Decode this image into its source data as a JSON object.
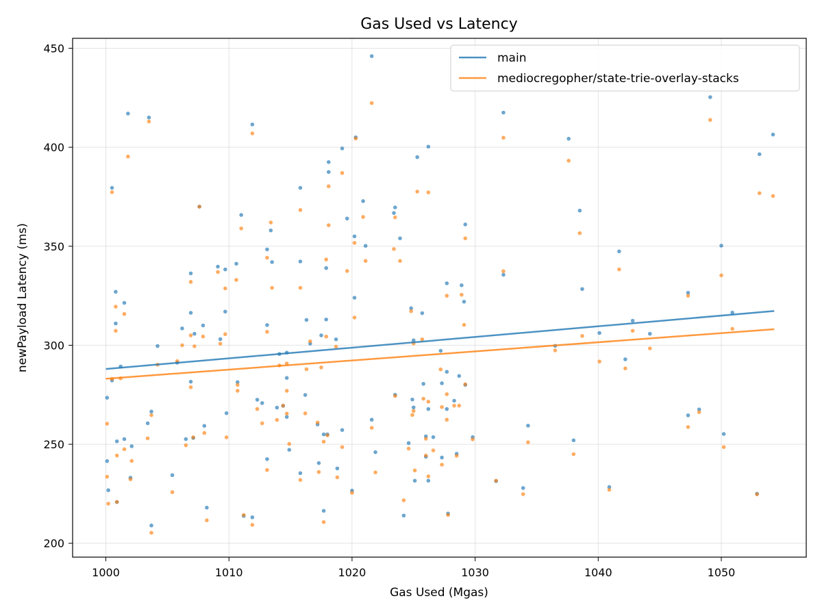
{
  "chart_data": {
    "type": "scatter",
    "title": "Gas Used vs Latency",
    "xlabel": "Gas Used (Mgas)",
    "ylabel": "newPayload Latency (ms)",
    "xlim": [
      997.3,
      1056.9
    ],
    "ylim": [
      193,
      455
    ],
    "xticks": [
      1000,
      1010,
      1020,
      1030,
      1040,
      1050
    ],
    "yticks": [
      200,
      250,
      300,
      350,
      400,
      450
    ],
    "grid": true,
    "legend_position": "top-right",
    "series": [
      {
        "name": "main",
        "color": "#1f77b4",
        "trend": [
          [
            1000,
            288
          ],
          [
            1054.3,
            317.3
          ]
        ],
        "points": [
          [
            1000.1,
            273.5
          ],
          [
            1000.1,
            241.5
          ],
          [
            1000.2,
            226.8
          ],
          [
            1000.5,
            379.5
          ],
          [
            1000.5,
            282.2
          ],
          [
            1000.8,
            327
          ],
          [
            1000.8,
            311
          ],
          [
            1000.9,
            251.5
          ],
          [
            1000.9,
            220.8
          ],
          [
            1001.2,
            289.3
          ],
          [
            1001.5,
            321.4
          ],
          [
            1001.5,
            252.6
          ],
          [
            1001.8,
            417
          ],
          [
            1002,
            233.1
          ],
          [
            1002.1,
            249
          ],
          [
            1003.4,
            260.6
          ],
          [
            1003.5,
            415
          ],
          [
            1003.7,
            266.5
          ],
          [
            1003.7,
            209
          ],
          [
            1004.2,
            299.6
          ],
          [
            1005.4,
            234.4
          ],
          [
            1005.8,
            291.2
          ],
          [
            1006.2,
            308.5
          ],
          [
            1006.5,
            252.6
          ],
          [
            1006.9,
            336.3
          ],
          [
            1006.9,
            316.4
          ],
          [
            1006.9,
            281.6
          ],
          [
            1007.1,
            253.2
          ],
          [
            1007.2,
            305.8
          ],
          [
            1007.6,
            370
          ],
          [
            1007.9,
            310
          ],
          [
            1008,
            259.3
          ],
          [
            1008.2,
            218
          ],
          [
            1009.1,
            339.7
          ],
          [
            1009.3,
            303.1
          ],
          [
            1009.7,
            338.3
          ],
          [
            1009.7,
            317
          ],
          [
            1009.8,
            265.7
          ],
          [
            1010.6,
            341.2
          ],
          [
            1010.7,
            281.4
          ],
          [
            1011,
            365.8
          ],
          [
            1011.2,
            213.8
          ],
          [
            1011.9,
            411.5
          ],
          [
            1011.9,
            213.1
          ],
          [
            1012.3,
            272.5
          ],
          [
            1012.7,
            270.8
          ],
          [
            1013.1,
            348.4
          ],
          [
            1013.1,
            310.2
          ],
          [
            1013.1,
            242.5
          ],
          [
            1013.4,
            358
          ],
          [
            1013.5,
            342
          ],
          [
            1013.9,
            268.5
          ],
          [
            1014.1,
            295.6
          ],
          [
            1014.4,
            269.4
          ],
          [
            1014.7,
            296.3
          ],
          [
            1014.7,
            283.5
          ],
          [
            1014.7,
            263.8
          ],
          [
            1014.9,
            247.2
          ],
          [
            1015.8,
            379.5
          ],
          [
            1015.8,
            342.3
          ],
          [
            1015.8,
            235.4
          ],
          [
            1016.2,
            274.9
          ],
          [
            1016.3,
            312.8
          ],
          [
            1016.6,
            300.8
          ],
          [
            1017.2,
            260
          ],
          [
            1017.3,
            240.5
          ],
          [
            1017.5,
            305
          ],
          [
            1017.7,
            255
          ],
          [
            1017.7,
            216.4
          ],
          [
            1017.9,
            339
          ],
          [
            1017.9,
            313
          ],
          [
            1018,
            255
          ],
          [
            1018.1,
            392.5
          ],
          [
            1018.1,
            387.5
          ],
          [
            1018.7,
            303
          ],
          [
            1018.8,
            237.8
          ],
          [
            1019.2,
            399.4
          ],
          [
            1019.2,
            257.2
          ],
          [
            1019.6,
            364
          ],
          [
            1020,
            226.6
          ],
          [
            1020.2,
            355
          ],
          [
            1020.2,
            324
          ],
          [
            1020.3,
            405
          ],
          [
            1020.9,
            372.8
          ],
          [
            1021.1,
            350.2
          ],
          [
            1021.6,
            262.4
          ],
          [
            1021.6,
            446
          ],
          [
            1021.9,
            246
          ],
          [
            1023.4,
            366.8
          ],
          [
            1023.5,
            369.6
          ],
          [
            1023.5,
            275
          ],
          [
            1023.9,
            354
          ],
          [
            1024.2,
            214
          ],
          [
            1024.6,
            250.6
          ],
          [
            1024.8,
            318.7
          ],
          [
            1024.9,
            272.6
          ],
          [
            1025,
            302.5
          ],
          [
            1025,
            268.6
          ],
          [
            1025.1,
            231.6
          ],
          [
            1025.3,
            395
          ],
          [
            1025.7,
            316.2
          ],
          [
            1025.8,
            280.5
          ],
          [
            1026,
            254
          ],
          [
            1026,
            243.7
          ],
          [
            1026.2,
            400.3
          ],
          [
            1026.2,
            267.8
          ],
          [
            1026.2,
            231.6
          ],
          [
            1026.6,
            253.6
          ],
          [
            1027.2,
            297.2
          ],
          [
            1027.3,
            280.8
          ],
          [
            1027.3,
            243.3
          ],
          [
            1027.7,
            331.3
          ],
          [
            1027.7,
            286.6
          ],
          [
            1027.7,
            267.8
          ],
          [
            1027.8,
            215
          ],
          [
            1028.3,
            272
          ],
          [
            1028.5,
            245.2
          ],
          [
            1028.7,
            284.5
          ],
          [
            1028.9,
            330.3
          ],
          [
            1029.1,
            322
          ],
          [
            1029.2,
            361
          ],
          [
            1029.2,
            280
          ],
          [
            1029.8,
            253.6
          ],
          [
            1031.7,
            231.4
          ],
          [
            1032.3,
            417.5
          ],
          [
            1032.3,
            335.6
          ],
          [
            1033.9,
            227.9
          ],
          [
            1034.3,
            259.4
          ],
          [
            1036.5,
            299.7
          ],
          [
            1037.6,
            404.3
          ],
          [
            1038,
            252
          ],
          [
            1038.5,
            368
          ],
          [
            1038.7,
            328.4
          ],
          [
            1040.1,
            306.2
          ],
          [
            1040.9,
            228.4
          ],
          [
            1041.7,
            347.4
          ],
          [
            1042.2,
            292.9
          ],
          [
            1042.8,
            312.4
          ],
          [
            1044.2,
            305.8
          ],
          [
            1047.3,
            326.5
          ],
          [
            1047.3,
            264.6
          ],
          [
            1048.2,
            267.6
          ],
          [
            1049.1,
            425.3
          ],
          [
            1050,
            350.3
          ],
          [
            1050.2,
            255.2
          ],
          [
            1050.9,
            316.5
          ],
          [
            1052.9,
            225
          ],
          [
            1053.1,
            396.5
          ],
          [
            1054.2,
            406.4
          ]
        ]
      },
      {
        "name": "mediocregopher/state-trie-overlay-stacks",
        "color": "#ff7f0e",
        "trend": [
          [
            1000,
            283.1
          ],
          [
            1054.3,
            308.1
          ]
        ],
        "points": [
          [
            1000.1,
            260.4
          ],
          [
            1000.1,
            233.6
          ],
          [
            1000.2,
            220
          ],
          [
            1000.5,
            377.3
          ],
          [
            1000.5,
            283
          ],
          [
            1000.8,
            319.5
          ],
          [
            1000.8,
            307.3
          ],
          [
            1000.9,
            244.3
          ],
          [
            1000.9,
            220.9
          ],
          [
            1001.2,
            283.3
          ],
          [
            1001.5,
            315.8
          ],
          [
            1001.5,
            247.5
          ],
          [
            1001.8,
            395.3
          ],
          [
            1002,
            232.3
          ],
          [
            1002.1,
            241.6
          ],
          [
            1003.4,
            253
          ],
          [
            1003.5,
            413
          ],
          [
            1003.7,
            264.7
          ],
          [
            1003.7,
            205.3
          ],
          [
            1004.2,
            290.2
          ],
          [
            1005.4,
            225.8
          ],
          [
            1005.8,
            292
          ],
          [
            1006.2,
            300
          ],
          [
            1006.5,
            249.5
          ],
          [
            1006.9,
            332
          ],
          [
            1006.9,
            305
          ],
          [
            1006.9,
            278.8
          ],
          [
            1007.1,
            253.5
          ],
          [
            1007.2,
            299.5
          ],
          [
            1007.6,
            370
          ],
          [
            1007.9,
            304.4
          ],
          [
            1008,
            255.7
          ],
          [
            1008.2,
            211.6
          ],
          [
            1009.1,
            337
          ],
          [
            1009.3,
            300.8
          ],
          [
            1009.7,
            328.7
          ],
          [
            1009.7,
            305.6
          ],
          [
            1009.8,
            253.5
          ],
          [
            1010.6,
            333
          ],
          [
            1010.7,
            277
          ],
          [
            1010.7,
            280
          ],
          [
            1011,
            359
          ],
          [
            1011.2,
            214.3
          ],
          [
            1011.9,
            407
          ],
          [
            1011.9,
            209.3
          ],
          [
            1012.3,
            267.8
          ],
          [
            1012.7,
            260.6
          ],
          [
            1013.1,
            344.2
          ],
          [
            1013.1,
            306.8
          ],
          [
            1013.1,
            237
          ],
          [
            1013.4,
            362
          ],
          [
            1013.5,
            329
          ],
          [
            1013.9,
            262.3
          ],
          [
            1014.1,
            289.8
          ],
          [
            1014.4,
            269.5
          ],
          [
            1014.7,
            290.8
          ],
          [
            1014.7,
            277
          ],
          [
            1014.7,
            265.5
          ],
          [
            1014.9,
            250.2
          ],
          [
            1015.8,
            368.3
          ],
          [
            1015.8,
            329
          ],
          [
            1015.8,
            232
          ],
          [
            1016.2,
            265.6
          ],
          [
            1016.3,
            287.9
          ],
          [
            1016.6,
            302
          ],
          [
            1017.2,
            261
          ],
          [
            1017.3,
            236
          ],
          [
            1017.5,
            288.8
          ],
          [
            1017.7,
            251.3
          ],
          [
            1017.7,
            210.7
          ],
          [
            1017.9,
            343.3
          ],
          [
            1017.9,
            304.4
          ],
          [
            1018,
            254.5
          ],
          [
            1018.1,
            380.3
          ],
          [
            1018.1,
            360.6
          ],
          [
            1018.7,
            299.3
          ],
          [
            1018.8,
            233.3
          ],
          [
            1019.2,
            387
          ],
          [
            1019.2,
            248.6
          ],
          [
            1019.6,
            337.5
          ],
          [
            1020,
            225.5
          ],
          [
            1020.2,
            351.7
          ],
          [
            1020.2,
            314
          ],
          [
            1020.3,
            404.4
          ],
          [
            1020.9,
            364.8
          ],
          [
            1021.1,
            342.6
          ],
          [
            1021.6,
            258.3
          ],
          [
            1021.6,
            422.3
          ],
          [
            1021.9,
            235.8
          ],
          [
            1023.4,
            348.6
          ],
          [
            1023.5,
            364.6
          ],
          [
            1023.5,
            274.4
          ],
          [
            1023.9,
            342.6
          ],
          [
            1024.2,
            221.7
          ],
          [
            1024.6,
            247.8
          ],
          [
            1024.8,
            317.2
          ],
          [
            1024.9,
            264.8
          ],
          [
            1025,
            300.9
          ],
          [
            1025,
            266.8
          ],
          [
            1025.1,
            236.8
          ],
          [
            1025.3,
            377.6
          ],
          [
            1025.7,
            303
          ],
          [
            1025.8,
            273
          ],
          [
            1026,
            252.8
          ],
          [
            1026,
            244.3
          ],
          [
            1026.2,
            377.2
          ],
          [
            1026.2,
            271.5
          ],
          [
            1026.2,
            233.8
          ],
          [
            1026.6,
            246.9
          ],
          [
            1027.2,
            287.8
          ],
          [
            1027.3,
            268.8
          ],
          [
            1027.3,
            239.7
          ],
          [
            1027.7,
            325
          ],
          [
            1027.7,
            275.3
          ],
          [
            1027.7,
            262.4
          ],
          [
            1027.8,
            214.3
          ],
          [
            1028.3,
            269.5
          ],
          [
            1028.5,
            244.2
          ],
          [
            1028.7,
            269.5
          ],
          [
            1028.9,
            325.5
          ],
          [
            1029.1,
            310.3
          ],
          [
            1029.2,
            354
          ],
          [
            1029.2,
            280.3
          ],
          [
            1029.8,
            252.5
          ],
          [
            1031.7,
            231.6
          ],
          [
            1032.3,
            404.8
          ],
          [
            1032.3,
            337.4
          ],
          [
            1033.9,
            224.8
          ],
          [
            1034.3,
            251
          ],
          [
            1036.5,
            297.4
          ],
          [
            1037.6,
            393.2
          ],
          [
            1038,
            245
          ],
          [
            1038.5,
            356.6
          ],
          [
            1038.7,
            304.7
          ],
          [
            1040.1,
            291.8
          ],
          [
            1040.9,
            227
          ],
          [
            1041.7,
            338.3
          ],
          [
            1042.2,
            288.3
          ],
          [
            1042.8,
            307.3
          ],
          [
            1044.2,
            298.4
          ],
          [
            1047.3,
            325
          ],
          [
            1047.3,
            258.7
          ],
          [
            1048.2,
            266.2
          ],
          [
            1049.1,
            413.8
          ],
          [
            1050,
            335.3
          ],
          [
            1050.2,
            248.6
          ],
          [
            1050.9,
            308.3
          ],
          [
            1052.9,
            224.7
          ],
          [
            1053.1,
            376.8
          ],
          [
            1054.2,
            375.4
          ]
        ]
      }
    ]
  }
}
